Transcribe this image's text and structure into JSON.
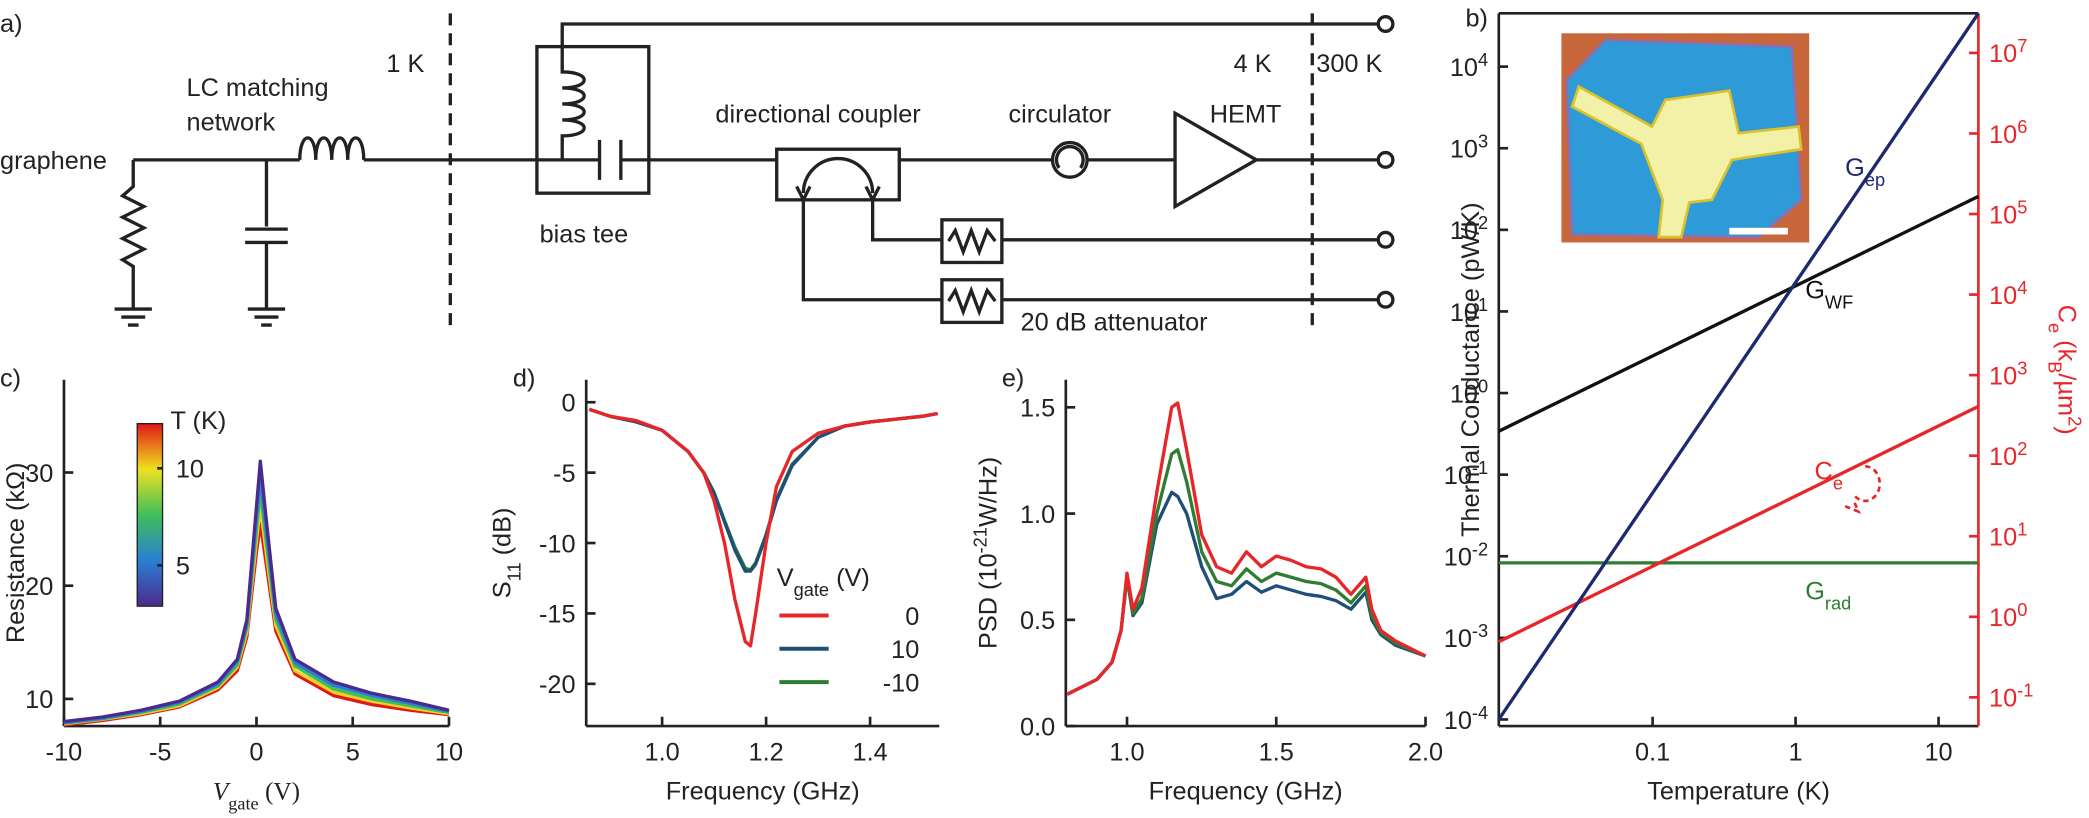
{
  "diagram": {
    "panel_label": "a)",
    "temperatures": [
      "1 K",
      "4 K",
      "300 K"
    ],
    "components": {
      "sample": "graphene",
      "matching": [
        "LC matching",
        "network"
      ],
      "bias_tee": "bias tee",
      "coupler": "directional coupler",
      "circulator": "circulator",
      "amplifier": "HEMT",
      "attenuator": "20 dB attenuator"
    }
  },
  "chart_data": [
    {
      "type": "line",
      "panel_label": "c)",
      "xlabel": [
        [
          "V"
        ],
        [
          "gate",
          "sub"
        ],
        [
          " (V)"
        ]
      ],
      "ylabel": "Resistance (kΩ)",
      "xlim": [
        -10,
        10
      ],
      "xticks": [
        -10,
        -5,
        0,
        5,
        10
      ],
      "ylim": [
        7.6,
        38.2
      ],
      "yticks": [
        10,
        20,
        30
      ],
      "x": [
        -10,
        -8,
        -6,
        -4,
        -2,
        -1,
        -0.5,
        0,
        0.2,
        0.5,
        1,
        2,
        4,
        6,
        8,
        10
      ],
      "series": [
        {
          "color": "#4b2a8c",
          "values": [
            8.0,
            8.4,
            9.0,
            9.8,
            11.5,
            13.5,
            17,
            27,
            31,
            26,
            18,
            13.5,
            11.5,
            10.5,
            9.8,
            9.0
          ]
        },
        {
          "color": "#2a7fd4",
          "values": [
            7.9,
            8.3,
            8.9,
            9.7,
            11.3,
            13.3,
            16.6,
            26,
            29.6,
            25,
            17.5,
            13.2,
            11.2,
            10.3,
            9.6,
            8.9
          ]
        },
        {
          "color": "#3fbf5a",
          "values": [
            7.85,
            8.25,
            8.8,
            9.55,
            11.15,
            13,
            16.3,
            25,
            28.3,
            24,
            17,
            12.9,
            10.9,
            10,
            9.4,
            8.8
          ]
        },
        {
          "color": "#f0d020",
          "values": [
            7.8,
            8.2,
            8.7,
            9.4,
            11,
            12.8,
            15.9,
            24,
            27,
            23,
            16.5,
            12.5,
            10.6,
            9.8,
            9.2,
            8.7
          ]
        },
        {
          "color": "#e01818",
          "values": [
            7.7,
            8.1,
            8.6,
            9.3,
            10.8,
            12.5,
            15.5,
            23,
            25.5,
            22,
            16,
            12.2,
            10.3,
            9.5,
            9.0,
            8.6
          ]
        }
      ],
      "colorbar": {
        "title": "T (K)",
        "lim": [
          2.9,
          12.3
        ],
        "ticks": [
          5,
          10
        ],
        "colors": [
          "#4b2a8c",
          "#2a7fd4",
          "#3fbf5a",
          "#f0e020",
          "#e01818"
        ]
      }
    },
    {
      "type": "line",
      "panel_label": "d)",
      "xlabel": "Frequency (GHz)",
      "ylabel": [
        [
          "S"
        ],
        [
          "11",
          "sub"
        ],
        [
          " (dB)"
        ]
      ],
      "xlim": [
        0.854,
        1.533
      ],
      "xticks": [
        {
          "value": 1,
          "label": "1.0"
        },
        {
          "value": 1.2,
          "label": "1.2"
        },
        {
          "value": 1.4,
          "label": "1.4"
        }
      ],
      "ylim": [
        -23,
        1.6
      ],
      "yticks": [
        0,
        -5,
        -10,
        -15,
        -20
      ],
      "x": [
        0.86,
        0.9,
        0.95,
        1.0,
        1.05,
        1.08,
        1.1,
        1.12,
        1.14,
        1.16,
        1.17,
        1.18,
        1.2,
        1.22,
        1.25,
        1.3,
        1.35,
        1.4,
        1.45,
        1.5,
        1.53
      ],
      "legend_title": [
        [
          "V"
        ],
        [
          "gate",
          "sub"
        ],
        [
          " (V)"
        ]
      ],
      "series": [
        {
          "name": "0",
          "color": "#e8262a",
          "values": [
            -0.5,
            -1,
            -1.3,
            -2,
            -3.5,
            -5,
            -7,
            -10,
            -14,
            -17,
            -17.3,
            -15,
            -10,
            -6,
            -3.5,
            -2.2,
            -1.7,
            -1.4,
            -1.2,
            -1.0,
            -0.8
          ]
        },
        {
          "name": "10",
          "color": "#1f4e79",
          "values": [
            -0.5,
            -1,
            -1.4,
            -2,
            -3.5,
            -5,
            -6.5,
            -8.5,
            -10.5,
            -12,
            -12,
            -11.5,
            -9.5,
            -7,
            -4.5,
            -2.5,
            -1.7,
            -1.4,
            -1.2,
            -1.0,
            -0.8
          ]
        },
        {
          "name": "-10",
          "color": "#2e7d32",
          "values": [
            -0.5,
            -1,
            -1.4,
            -2,
            -3.5,
            -5,
            -6.4,
            -8.4,
            -10.3,
            -11.8,
            -11.9,
            -11.4,
            -9.4,
            -6.9,
            -4.4,
            -2.5,
            -1.7,
            -1.4,
            -1.2,
            -1.0,
            -0.8
          ]
        }
      ]
    },
    {
      "type": "line",
      "panel_label": "e)",
      "xlabel": "Frequency (GHz)",
      "ylabel": [
        [
          "PSD (10"
        ],
        [
          "-21",
          "sup"
        ],
        [
          "W/Hz)"
        ]
      ],
      "xlim": [
        0.795,
        2.0
      ],
      "xticks": [
        {
          "value": 1,
          "label": "1.0"
        },
        {
          "value": 1.5,
          "label": "1.5"
        },
        {
          "value": 2,
          "label": "2.0"
        }
      ],
      "ylim": [
        0,
        1.63
      ],
      "yticks": [
        {
          "value": 0,
          "label": "0.0"
        },
        {
          "value": 0.5,
          "label": "0.5"
        },
        {
          "value": 1,
          "label": "1.0"
        },
        {
          "value": 1.5,
          "label": "1.5"
        }
      ],
      "x": [
        0.8,
        0.9,
        0.95,
        0.98,
        1.0,
        1.02,
        1.05,
        1.1,
        1.15,
        1.17,
        1.2,
        1.25,
        1.3,
        1.35,
        1.4,
        1.45,
        1.5,
        1.55,
        1.6,
        1.65,
        1.7,
        1.75,
        1.8,
        1.82,
        1.85,
        1.9,
        2.0
      ],
      "series": [
        {
          "color": "#e8262a",
          "values": [
            0.15,
            0.22,
            0.3,
            0.45,
            0.72,
            0.55,
            0.65,
            1.1,
            1.5,
            1.52,
            1.3,
            0.9,
            0.75,
            0.72,
            0.82,
            0.75,
            0.8,
            0.78,
            0.75,
            0.74,
            0.7,
            0.62,
            0.7,
            0.55,
            0.45,
            0.4,
            0.33
          ]
        },
        {
          "color": "#2e7d32",
          "values": [
            0.15,
            0.22,
            0.3,
            0.45,
            0.7,
            0.53,
            0.6,
            1.0,
            1.28,
            1.3,
            1.15,
            0.82,
            0.68,
            0.66,
            0.74,
            0.68,
            0.72,
            0.7,
            0.68,
            0.67,
            0.64,
            0.58,
            0.66,
            0.52,
            0.44,
            0.39,
            0.33
          ]
        },
        {
          "color": "#1f4e79",
          "values": [
            0.15,
            0.22,
            0.3,
            0.45,
            0.7,
            0.52,
            0.58,
            0.95,
            1.1,
            1.08,
            1.0,
            0.75,
            0.6,
            0.62,
            0.68,
            0.63,
            0.66,
            0.64,
            0.62,
            0.61,
            0.59,
            0.55,
            0.63,
            0.5,
            0.43,
            0.38,
            0.33
          ]
        }
      ]
    },
    {
      "type": "line",
      "panel_label": "b)",
      "xlabel": "Temperature (K)",
      "ylabel": "Thermal Conductance (pW/K)",
      "y2label": [
        [
          "C"
        ],
        [
          "e",
          "sub"
        ],
        [
          " (k"
        ],
        [
          "B",
          "sub"
        ],
        [
          "/µm"
        ],
        [
          "2",
          "sup"
        ],
        [
          ")"
        ]
      ],
      "xlog": true,
      "ylog": true,
      "xlim": [
        0.0084,
        19
      ],
      "xticks": [
        0.1,
        1,
        10
      ],
      "ylim": [
        8.3e-05,
        45000
      ],
      "yticks": [
        {
          "value": 0.0001,
          "label": "10",
          "exp": "-4"
        },
        {
          "value": 0.001,
          "label": "10",
          "exp": "-3"
        },
        {
          "value": 0.01,
          "label": "10",
          "exp": "-2"
        },
        {
          "value": 0.1,
          "label": "10",
          "exp": "-1"
        },
        {
          "value": 1,
          "label": "10",
          "exp": "0"
        },
        {
          "value": 10,
          "label": "10",
          "exp": "1"
        },
        {
          "value": 100,
          "label": "10",
          "exp": "2"
        },
        {
          "value": 1000,
          "label": "10",
          "exp": "3"
        },
        {
          "value": 10000,
          "label": "10",
          "exp": "4"
        }
      ],
      "y2lim": [
        0.044,
        31000000
      ],
      "y2color": "#e8262a",
      "y2ticks": [
        {
          "value": 0.1,
          "label": "10",
          "exp": "-1"
        },
        {
          "value": 1,
          "label": "10",
          "exp": "0"
        },
        {
          "value": 10,
          "label": "10",
          "exp": "1"
        },
        {
          "value": 100,
          "label": "10",
          "exp": "2"
        },
        {
          "value": 1000,
          "label": "10",
          "exp": "3"
        },
        {
          "value": 10000,
          "label": "10",
          "exp": "4"
        },
        {
          "value": 100000,
          "label": "10",
          "exp": "5"
        },
        {
          "value": 1000000,
          "label": "10",
          "exp": "6"
        },
        {
          "value": 10000000,
          "label": "10",
          "exp": "7"
        }
      ],
      "x": [
        0.0084,
        19
      ],
      "series": [
        {
          "label": [
            [
              "G"
            ],
            [
              "ep",
              "sub"
            ]
          ],
          "color": "#1f2a6e",
          "values": [
            0.0001,
            45000
          ]
        },
        {
          "label": [
            [
              "G"
            ],
            [
              "WF",
              "sub"
            ]
          ],
          "color": "#111111",
          "values": [
            0.34,
            257
          ]
        },
        {
          "label": [
            [
              "C"
            ],
            [
              "e",
              "sub"
            ]
          ],
          "color": "#e8262a",
          "axis": "y2",
          "values": [
            0.49,
            410
          ]
        },
        {
          "label": [
            [
              "G"
            ],
            [
              "rad",
              "sub"
            ]
          ],
          "color": "#2e7d32",
          "values": [
            0.0083,
            0.0083
          ]
        }
      ]
    }
  ]
}
